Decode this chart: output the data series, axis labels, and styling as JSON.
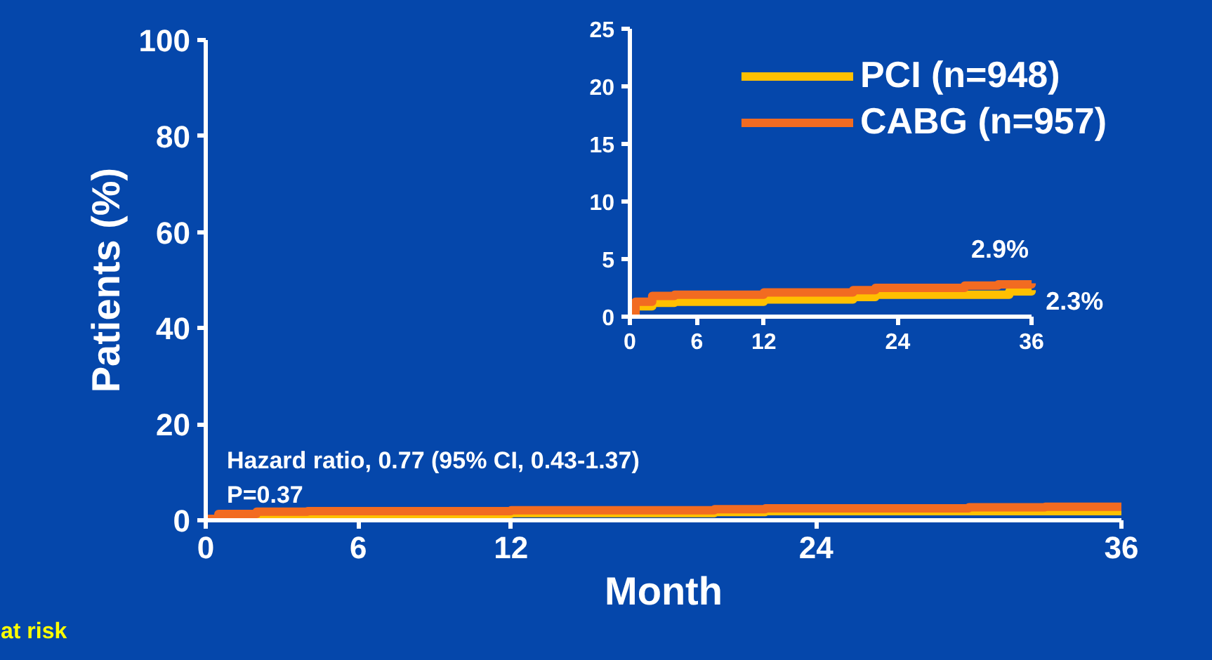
{
  "chart_data": [
    {
      "type": "step",
      "xlabel": "Month",
      "ylabel": "Patients (%)",
      "xlim": [
        0,
        36
      ],
      "ylim": [
        0,
        100
      ],
      "xticks": [
        0,
        6,
        12,
        24,
        36
      ],
      "yticks": [
        0,
        20,
        40,
        60,
        80,
        100
      ],
      "grid": false,
      "legend": "top right",
      "x": [
        0,
        0.5,
        2,
        4,
        12,
        20,
        22,
        30,
        33,
        36
      ],
      "series": [
        {
          "name": "PCI (n=948)",
          "color": "#ffc000",
          "values": [
            0.2,
            0.9,
            1.2,
            1.3,
            1.5,
            1.7,
            1.9,
            1.9,
            1.9,
            2.3
          ]
        },
        {
          "name": "CABG (n=957)",
          "color": "#f26b21",
          "values": [
            0.3,
            1.3,
            1.8,
            1.9,
            2.1,
            2.3,
            2.5,
            2.7,
            2.8,
            2.9
          ]
        }
      ],
      "annotations": [
        "Hazard ratio, 0.77 (95% CI, 0.43-1.37)\nP=0.37",
        "at risk"
      ]
    },
    {
      "type": "step",
      "xlim": [
        0,
        36
      ],
      "ylim": [
        0,
        25
      ],
      "xticks": [
        0,
        6,
        12,
        24,
        36
      ],
      "yticks": [
        0,
        5,
        10,
        15,
        20,
        25
      ],
      "grid": false,
      "x": [
        0,
        0.5,
        2,
        4,
        12,
        20,
        22,
        30,
        33,
        34,
        36
      ],
      "series": [
        {
          "color": "#ffc000",
          "values": [
            0.2,
            0.9,
            1.2,
            1.3,
            1.5,
            1.7,
            1.9,
            1.9,
            1.9,
            2.2,
            2.3
          ]
        },
        {
          "color": "#f26b21",
          "values": [
            0.3,
            1.3,
            1.8,
            1.9,
            2.1,
            2.3,
            2.5,
            2.7,
            2.8,
            2.8,
            2.9
          ]
        }
      ],
      "annotations": [
        {
          "text": "2.9%",
          "x": 36,
          "y": 2.9
        },
        {
          "text": "2.3%",
          "x": 36,
          "y": 2.3
        }
      ]
    }
  ]
}
